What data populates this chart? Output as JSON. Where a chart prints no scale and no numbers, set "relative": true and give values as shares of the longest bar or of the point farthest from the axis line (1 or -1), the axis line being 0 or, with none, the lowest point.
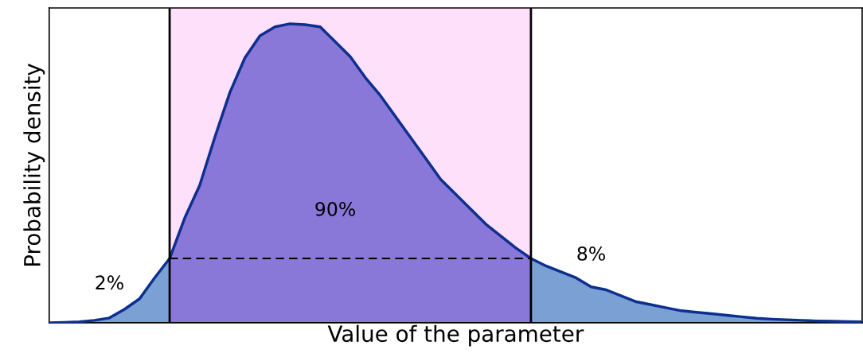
{
  "chart_data": {
    "type": "area",
    "relative": true,
    "xlabel": "Value of the parameter",
    "ylabel": "Probability density",
    "categories": [
      null,
      null,
      null,
      null,
      null,
      null,
      null,
      null,
      null,
      null,
      null,
      null,
      null,
      null,
      null,
      null,
      null,
      null,
      null,
      null,
      null,
      null,
      null,
      null,
      null,
      null,
      null,
      null,
      null,
      null,
      null,
      null,
      null,
      null,
      null,
      null,
      null,
      null,
      null,
      null,
      null,
      null,
      null,
      null,
      null,
      null,
      null,
      null,
      null,
      null,
      null,
      null,
      null,
      null,
      null
    ],
    "series": [
      {
        "color": "#7aa0d4",
        "values": [
          0,
          0.001,
          0.003,
          0.008,
          0.016,
          0.045,
          0.08,
          0.15,
          0.215,
          null,
          null,
          null,
          null,
          null,
          null,
          null,
          null,
          null,
          null,
          null,
          null,
          null,
          null,
          null,
          null,
          null,
          null,
          null,
          null,
          null,
          null,
          null,
          null,
          null,
          null,
          null,
          null,
          null,
          null,
          null,
          null,
          null,
          null,
          null,
          null,
          null,
          null,
          null,
          null,
          null,
          null,
          null,
          null,
          null,
          null
        ]
      },
      {
        "color": "#8a78d8",
        "values": [
          null,
          null,
          null,
          null,
          null,
          null,
          null,
          null,
          0.215,
          0.35,
          0.46,
          0.62,
          0.77,
          0.886,
          0.96,
          0.99,
          1.0,
          0.997,
          0.99,
          0.94,
          0.89,
          0.82,
          0.76,
          0.69,
          0.62,
          0.55,
          0.48,
          0.43,
          0.38,
          0.33,
          0.29,
          0.25,
          0.215,
          null,
          null,
          null,
          null,
          null,
          null,
          null,
          null,
          null,
          null,
          null,
          null,
          null,
          null,
          null,
          null,
          null,
          null,
          null,
          null,
          null,
          null
        ]
      },
      {
        "color": "#7aa0d4",
        "values": [
          null,
          null,
          null,
          null,
          null,
          null,
          null,
          null,
          null,
          null,
          null,
          null,
          null,
          null,
          null,
          null,
          null,
          null,
          null,
          null,
          null,
          null,
          null,
          null,
          null,
          null,
          null,
          null,
          null,
          null,
          null,
          null,
          0.215,
          0.19,
          0.17,
          0.15,
          0.12,
          0.11,
          0.09,
          0.07,
          0.06,
          0.05,
          0.04,
          0.035,
          0.03,
          0.025,
          0.02,
          0.015,
          0.012,
          0.01,
          0.008,
          0.006,
          0.005,
          0.004,
          0.003
        ]
      },
      {
        "type": "line",
        "color": "#0d2f8f",
        "values": [
          0,
          0.001,
          0.003,
          0.008,
          0.016,
          0.045,
          0.08,
          0.15,
          0.215,
          0.35,
          0.46,
          0.62,
          0.77,
          0.886,
          0.96,
          0.99,
          1.0,
          0.997,
          0.99,
          0.94,
          0.89,
          0.82,
          0.76,
          0.69,
          0.62,
          0.55,
          0.48,
          0.43,
          0.38,
          0.33,
          0.29,
          0.25,
          0.215,
          0.19,
          0.17,
          0.15,
          0.12,
          0.11,
          0.09,
          0.07,
          0.06,
          0.05,
          0.04,
          0.035,
          0.03,
          0.025,
          0.02,
          0.015,
          0.012,
          0.01,
          0.008,
          0.006,
          0.005,
          0.004,
          0.003
        ]
      },
      {
        "type": "line",
        "color": "#000000",
        "line_style": "dashed",
        "values": [
          null,
          null,
          null,
          null,
          null,
          null,
          null,
          null,
          0.215,
          0.215,
          0.215,
          0.215,
          0.215,
          0.215,
          0.215,
          0.215,
          0.215,
          0.215,
          0.215,
          0.215,
          0.215,
          0.215,
          0.215,
          0.215,
          0.215,
          0.215,
          0.215,
          0.215,
          0.215,
          0.215,
          0.215,
          0.215,
          0.215,
          null,
          null,
          null,
          null,
          null,
          null,
          null,
          null,
          null,
          null,
          null,
          null,
          null,
          null,
          null,
          null,
          null,
          null,
          null,
          null,
          null,
          null
        ]
      }
    ],
    "annotations": [
      "2%",
      "90%",
      "8%"
    ],
    "tick_labels": false,
    "legend": false
  }
}
